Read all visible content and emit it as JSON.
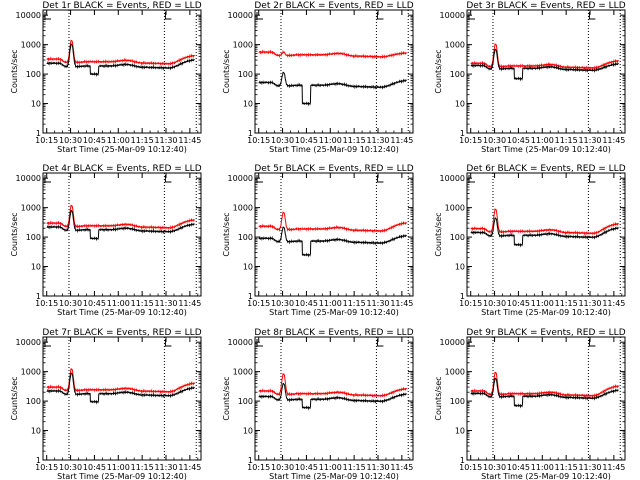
{
  "chart_data": {
    "type": "line",
    "yscale": "log",
    "xlabel": "Start Time (25-Mar-09 10:12:40)",
    "ylabel": "Counts/sec",
    "x_tick_labels": [
      "10:15",
      "10:30",
      "10:45",
      "11:00",
      "11:15",
      "11:30",
      "11:45"
    ],
    "x_ticks_min": [
      15,
      30,
      45,
      60,
      75,
      90,
      105
    ],
    "xlim_min": [
      12.67,
      112
    ],
    "ylim": [
      1,
      15000
    ],
    "y_tick_labels": [
      "1",
      "10",
      "100",
      "1000",
      "10000"
    ],
    "y_tick_values": [
      1,
      10,
      100,
      1000,
      10000
    ],
    "vlines_min": [
      29,
      89,
      109
    ],
    "series_colors": {
      "events": "#000000",
      "lld": "#ff0000"
    },
    "panels": [
      {
        "title": "Det 1r BLACK = Events, RED = LLD",
        "peak": [
          1050,
          1400
        ],
        "base": [
          180,
          250
        ],
        "dip": 100,
        "events_end": 300,
        "lld_end": 420
      },
      {
        "title": "Det 2r BLACK = Events, RED = LLD",
        "peak": [
          115,
          560
        ],
        "base": [
          40,
          430
        ],
        "dip": 10,
        "events_end": 60,
        "lld_end": 520
      },
      {
        "title": "Det 3r BLACK = Events, RED = LLD",
        "peak": [
          700,
          1050
        ],
        "base": [
          150,
          180
        ],
        "dip": 70,
        "events_end": 220,
        "lld_end": 280
      },
      {
        "title": "Det 4r BLACK = Events, RED = LLD",
        "peak": [
          800,
          1200
        ],
        "base": [
          170,
          230
        ],
        "dip": 90,
        "events_end": 270,
        "lld_end": 380
      },
      {
        "title": "Det 5r BLACK = Events, RED = LLD",
        "peak": [
          220,
          700
        ],
        "base": [
          70,
          180
        ],
        "dip": 25,
        "events_end": 110,
        "lld_end": 300
      },
      {
        "title": "Det 6r BLACK = Events, RED = LLD",
        "peak": [
          450,
          900
        ],
        "base": [
          110,
          150
        ],
        "dip": 55,
        "events_end": 200,
        "lld_end": 280
      },
      {
        "title": "Det 7r BLACK = Events, RED = LLD",
        "peak": [
          900,
          1250
        ],
        "base": [
          170,
          230
        ],
        "dip": 95,
        "events_end": 280,
        "lld_end": 400
      },
      {
        "title": "Det 8r BLACK = Events, RED = LLD",
        "peak": [
          400,
          850
        ],
        "base": [
          110,
          170
        ],
        "dip": 60,
        "events_end": 170,
        "lld_end": 260
      },
      {
        "title": "Det 9r BLACK = Events, RED = LLD",
        "peak": [
          600,
          950
        ],
        "base": [
          140,
          170
        ],
        "dip": 70,
        "events_end": 230,
        "lld_end": 320
      }
    ]
  }
}
